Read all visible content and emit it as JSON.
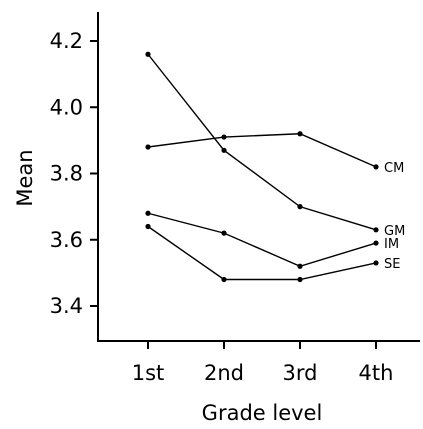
{
  "chart_data": {
    "type": "line",
    "title": "",
    "xlabel": "Grade level",
    "ylabel": "Mean",
    "categories": [
      "1st",
      "2nd",
      "3rd",
      "4th"
    ],
    "y_ticks": [
      "3.4",
      "3.6",
      "3.8",
      "4.0",
      "4.2"
    ],
    "ylim": [
      3.3,
      4.3
    ],
    "grid": false,
    "legend": "none",
    "series_color": "#000000",
    "series": [
      {
        "name": "CM",
        "values": [
          3.88,
          3.91,
          3.92,
          3.82
        ]
      },
      {
        "name": "GM",
        "values": [
          4.16,
          3.87,
          3.7,
          3.63
        ]
      },
      {
        "name": "IM",
        "values": [
          3.68,
          3.62,
          3.52,
          3.59
        ]
      },
      {
        "name": "SE",
        "values": [
          3.64,
          3.48,
          3.48,
          3.53
        ]
      }
    ]
  }
}
